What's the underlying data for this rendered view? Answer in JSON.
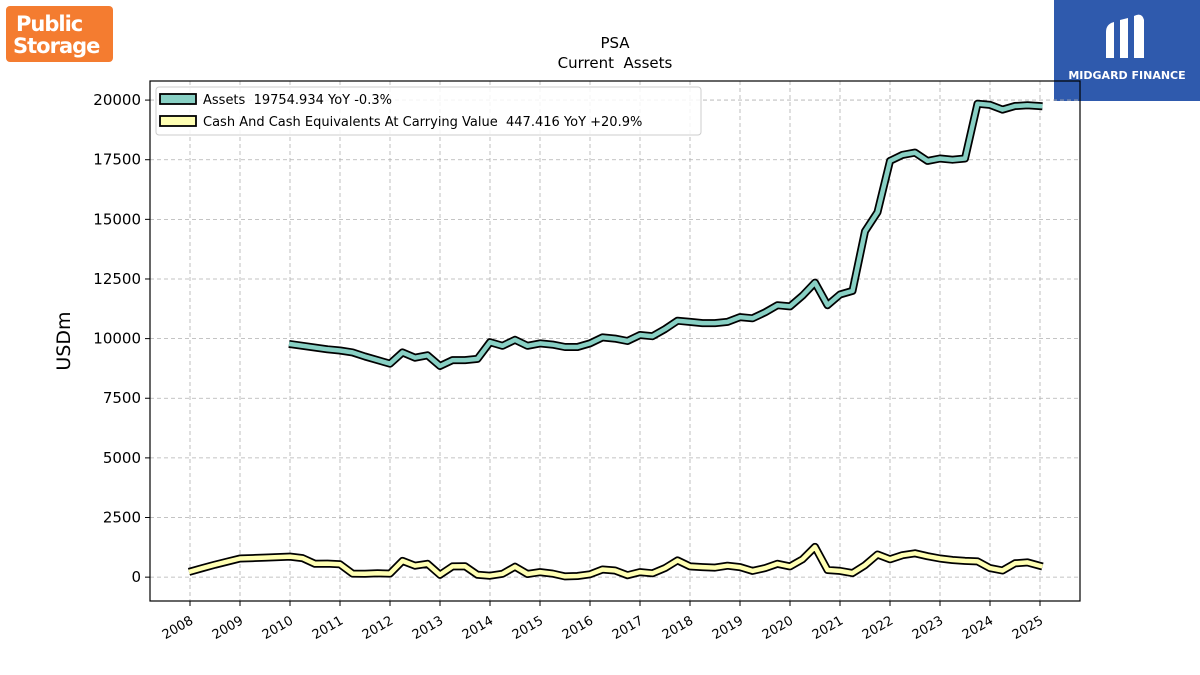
{
  "logos": {
    "left": {
      "line1": "Public",
      "line2": "Storage",
      "color": "#f47c30"
    },
    "right": {
      "name": "MIDGARD FINANCE",
      "color": "#2f5aad"
    }
  },
  "chart_data": {
    "type": "line",
    "title": "PSA",
    "subtitle": "Current  Assets",
    "ylabel": "USDm",
    "xlabel": "",
    "xlim": [
      2007.2,
      2025.8
    ],
    "ylim": [
      -1000,
      20800
    ],
    "yticks": [
      0,
      2500,
      5000,
      7500,
      10000,
      12500,
      15000,
      17500,
      20000
    ],
    "xticks": [
      2008,
      2009,
      2010,
      2011,
      2012,
      2013,
      2014,
      2015,
      2016,
      2017,
      2018,
      2019,
      2020,
      2021,
      2022,
      2023,
      2024,
      2025
    ],
    "grid": true,
    "legend_position": "top-left",
    "series": [
      {
        "name": "Assets",
        "legend_label": "Assets  19754.934 YoY -0.3%",
        "color": "#88d0c4",
        "points": [
          [
            2009.98,
            9780
          ],
          [
            2010.75,
            9550
          ],
          [
            2011.0,
            9500
          ],
          [
            2011.25,
            9420
          ],
          [
            2011.5,
            9250
          ],
          [
            2012.0,
            8950
          ],
          [
            2012.25,
            9420
          ],
          [
            2012.5,
            9200
          ],
          [
            2012.75,
            9300
          ],
          [
            2013.0,
            8850
          ],
          [
            2013.25,
            9100
          ],
          [
            2013.5,
            9100
          ],
          [
            2013.75,
            9150
          ],
          [
            2014.0,
            9850
          ],
          [
            2014.25,
            9700
          ],
          [
            2014.5,
            9950
          ],
          [
            2014.75,
            9700
          ],
          [
            2015.0,
            9800
          ],
          [
            2015.25,
            9750
          ],
          [
            2015.5,
            9650
          ],
          [
            2015.75,
            9650
          ],
          [
            2016.0,
            9800
          ],
          [
            2016.25,
            10050
          ],
          [
            2016.5,
            10000
          ],
          [
            2016.75,
            9900
          ],
          [
            2017.0,
            10150
          ],
          [
            2017.25,
            10100
          ],
          [
            2017.5,
            10400
          ],
          [
            2017.75,
            10750
          ],
          [
            2018.0,
            10700
          ],
          [
            2018.25,
            10650
          ],
          [
            2018.5,
            10650
          ],
          [
            2018.75,
            10700
          ],
          [
            2019.0,
            10900
          ],
          [
            2019.25,
            10850
          ],
          [
            2019.5,
            11100
          ],
          [
            2019.75,
            11400
          ],
          [
            2020.0,
            11350
          ],
          [
            2020.25,
            11800
          ],
          [
            2020.5,
            12350
          ],
          [
            2020.75,
            11400
          ],
          [
            2021.0,
            11850
          ],
          [
            2021.25,
            12000
          ],
          [
            2021.5,
            14500
          ],
          [
            2021.75,
            15300
          ],
          [
            2022.0,
            17450
          ],
          [
            2022.25,
            17700
          ],
          [
            2022.5,
            17800
          ],
          [
            2022.75,
            17450
          ],
          [
            2023.0,
            17550
          ],
          [
            2023.25,
            17500
          ],
          [
            2023.5,
            17550
          ],
          [
            2023.75,
            19850
          ],
          [
            2024.0,
            19800
          ],
          [
            2024.25,
            19600
          ],
          [
            2024.5,
            19750
          ],
          [
            2024.75,
            19780
          ],
          [
            2025.05,
            19740
          ]
        ]
      },
      {
        "name": "Cash And Cash Equivalents At Carrying Value",
        "legend_label": "Cash And Cash Equivalents At Carrying Value  447.416 YoY +20.9%",
        "color": "#ffffb3",
        "points": [
          [
            2007.98,
            220
          ],
          [
            2008.25,
            380
          ],
          [
            2008.5,
            520
          ],
          [
            2008.75,
            650
          ],
          [
            2009.0,
            780
          ],
          [
            2009.25,
            800
          ],
          [
            2009.5,
            820
          ],
          [
            2009.75,
            840
          ],
          [
            2010.0,
            860
          ],
          [
            2010.25,
            800
          ],
          [
            2010.5,
            560
          ],
          [
            2010.75,
            570
          ],
          [
            2011.0,
            540
          ],
          [
            2011.25,
            150
          ],
          [
            2011.5,
            140
          ],
          [
            2011.75,
            160
          ],
          [
            2012.0,
            150
          ],
          [
            2012.25,
            680
          ],
          [
            2012.5,
            480
          ],
          [
            2012.75,
            560
          ],
          [
            2013.0,
            100
          ],
          [
            2013.25,
            450
          ],
          [
            2013.5,
            460
          ],
          [
            2013.75,
            100
          ],
          [
            2014.0,
            60
          ],
          [
            2014.25,
            140
          ],
          [
            2014.5,
            440
          ],
          [
            2014.75,
            130
          ],
          [
            2015.0,
            210
          ],
          [
            2015.25,
            150
          ],
          [
            2015.5,
            30
          ],
          [
            2015.75,
            50
          ],
          [
            2016.0,
            120
          ],
          [
            2016.25,
            320
          ],
          [
            2016.5,
            280
          ],
          [
            2016.75,
            80
          ],
          [
            2017.0,
            210
          ],
          [
            2017.25,
            160
          ],
          [
            2017.5,
            380
          ],
          [
            2017.75,
            700
          ],
          [
            2018.0,
            450
          ],
          [
            2018.25,
            420
          ],
          [
            2018.5,
            400
          ],
          [
            2018.75,
            480
          ],
          [
            2019.0,
            420
          ],
          [
            2019.25,
            260
          ],
          [
            2019.5,
            380
          ],
          [
            2019.75,
            560
          ],
          [
            2020.0,
            450
          ],
          [
            2020.25,
            750
          ],
          [
            2020.5,
            1270
          ],
          [
            2020.75,
            300
          ],
          [
            2021.0,
            260
          ],
          [
            2021.25,
            170
          ],
          [
            2021.5,
            500
          ],
          [
            2021.75,
            950
          ],
          [
            2022.0,
            750
          ],
          [
            2022.25,
            920
          ],
          [
            2022.5,
            1000
          ],
          [
            2022.75,
            880
          ],
          [
            2023.0,
            780
          ],
          [
            2023.25,
            720
          ],
          [
            2023.5,
            680
          ],
          [
            2023.75,
            660
          ],
          [
            2024.0,
            380
          ],
          [
            2024.25,
            280
          ],
          [
            2024.5,
            580
          ],
          [
            2024.75,
            620
          ],
          [
            2025.05,
            447
          ]
        ]
      }
    ]
  }
}
